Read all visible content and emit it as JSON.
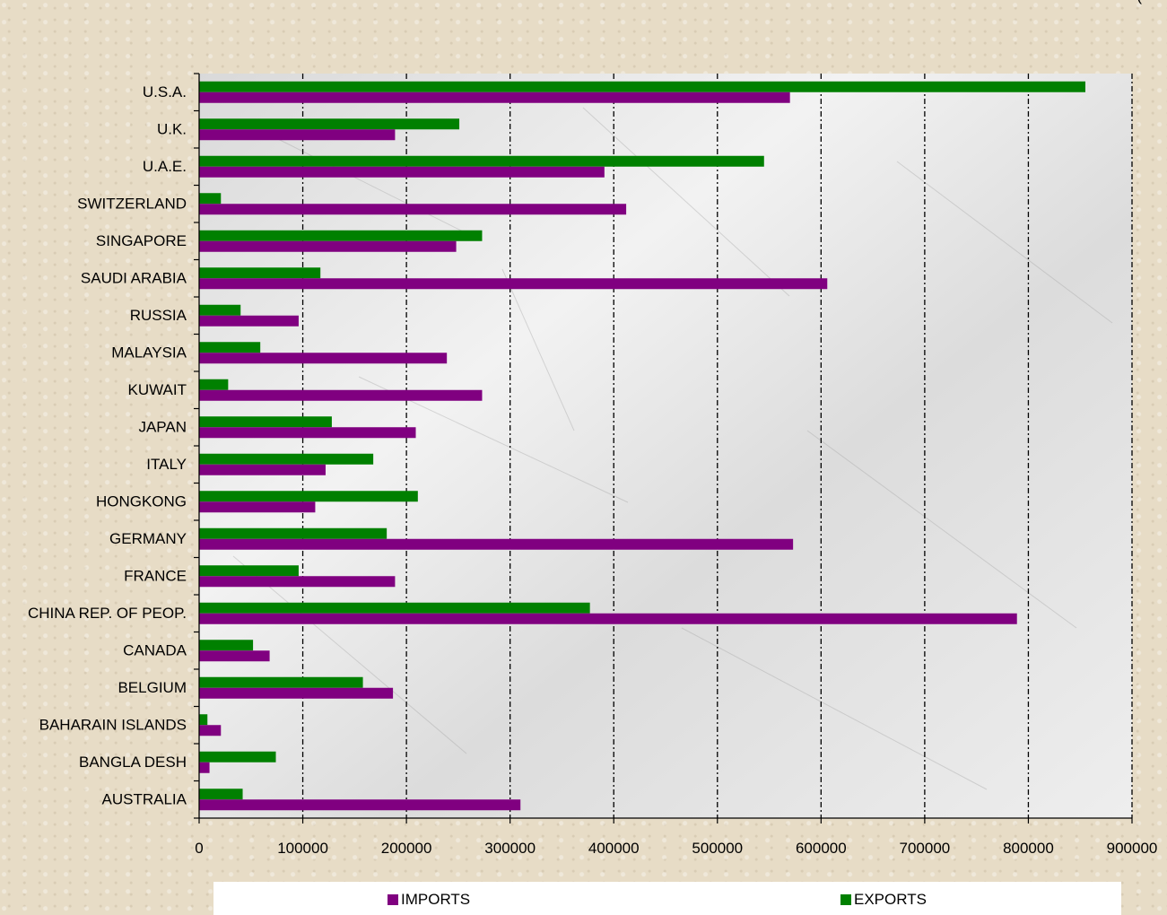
{
  "top_fragment": "(",
  "chart_data": {
    "type": "bar",
    "orientation": "horizontal",
    "categories": [
      "U.S.A.",
      "U.K.",
      "U.A.E.",
      "SWITZERLAND",
      "SINGAPORE",
      "SAUDI ARABIA",
      "RUSSIA",
      "MALAYSIA",
      "KUWAIT",
      "JAPAN",
      "ITALY",
      "HONGKONG",
      "GERMANY",
      "FRANCE",
      "CHINA REP. OF PEOP.",
      "CANADA",
      "BELGIUM",
      "BAHARAIN ISLANDS",
      "BANGLA DESH",
      "AUSTRALIA"
    ],
    "series": [
      {
        "name": "IMPORTS",
        "color": "#800080",
        "values": [
          570000,
          189000,
          391000,
          412000,
          248000,
          606000,
          96000,
          239000,
          273000,
          209000,
          122000,
          112000,
          573000,
          189000,
          789000,
          68000,
          187000,
          21000,
          10000,
          310000
        ]
      },
      {
        "name": "EXPORTS",
        "color": "#008000",
        "values": [
          855000,
          251000,
          545000,
          21000,
          273000,
          117000,
          40000,
          59000,
          28000,
          128000,
          168000,
          211000,
          181000,
          96000,
          377000,
          52000,
          158000,
          8000,
          74000,
          42000
        ]
      }
    ],
    "xlim": [
      0,
      900000
    ],
    "xticks": [
      "0",
      "100000",
      "200000",
      "300000",
      "400000",
      "500000",
      "600000",
      "700000",
      "800000",
      "900000"
    ],
    "grid": "vertical dashed",
    "legend_position": "bottom"
  }
}
